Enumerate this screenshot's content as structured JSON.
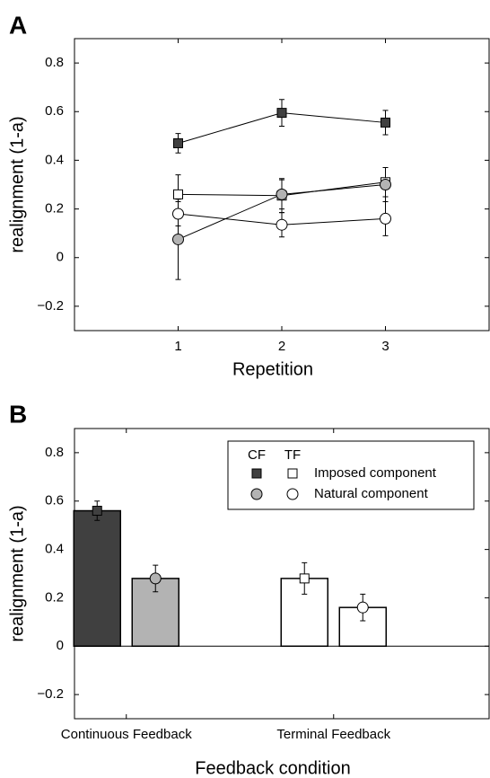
{
  "chart_data": [
    {
      "type": "line",
      "panel_label": "A",
      "xlabel": "Repetition",
      "ylabel": "realignment (1-a)",
      "x": [
        1,
        2,
        3
      ],
      "xlim": [
        0,
        4
      ],
      "xticks": [
        1,
        2,
        3
      ],
      "ylim": [
        -0.3,
        0.9
      ],
      "yticks": [
        {
          "value": -0.2,
          "label": "−0.2"
        },
        0,
        0.2,
        0.4,
        0.6,
        0.8
      ],
      "series": [
        {
          "color": "#404040",
          "marker": "square",
          "values": [
            0.47,
            0.595,
            0.555
          ],
          "errors": [
            0.04,
            0.055,
            0.05
          ]
        },
        {
          "color": "#ffffff",
          "marker": "square",
          "values": [
            0.26,
            0.255,
            0.31
          ],
          "errors": [
            0.08,
            0.07,
            0.06
          ]
        },
        {
          "color": "#b3b3b3",
          "marker": "circle",
          "values": [
            0.075,
            0.26,
            0.3
          ],
          "errors": [
            0.165,
            0.06,
            0.07
          ]
        },
        {
          "color": "#ffffff",
          "marker": "circle",
          "values": [
            0.18,
            0.135,
            0.16
          ],
          "errors": [
            0.05,
            0.05,
            0.07
          ]
        }
      ]
    },
    {
      "type": "bar",
      "panel_label": "B",
      "xlabel": "Feedback condition",
      "ylabel": "realignment (1-a)",
      "categories": [
        "Continuous Feedback",
        "Terminal Feedback"
      ],
      "ylim": [
        -0.3,
        0.9
      ],
      "yticks": [
        {
          "value": -0.2,
          "label": "−0.2"
        },
        0,
        0.2,
        0.4,
        0.6,
        0.8
      ],
      "legend": "upper right",
      "legend_columns": [
        "CF",
        "TF"
      ],
      "series": [
        {
          "name": "Imposed component",
          "marker": "square",
          "colors": [
            "#404040",
            "#ffffff"
          ],
          "values": [
            0.56,
            0.28
          ],
          "errors": [
            0.04,
            0.065
          ]
        },
        {
          "name": "Natural component",
          "marker": "circle",
          "colors": [
            "#b3b3b3",
            "#ffffff"
          ],
          "values": [
            0.28,
            0.16
          ],
          "errors": [
            0.055,
            0.055
          ]
        }
      ]
    }
  ]
}
